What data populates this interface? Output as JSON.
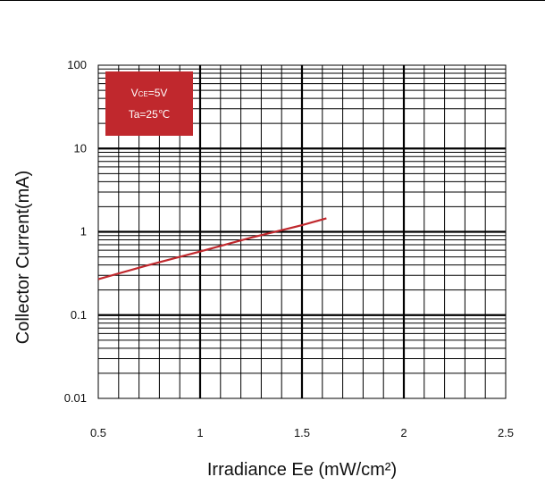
{
  "chart_data": {
    "type": "line",
    "title": "",
    "xlabel": "Irradiance Ee (mW/cm²)",
    "ylabel": "Collector Current(mA)",
    "xlim": [
      0.5,
      2.5
    ],
    "ylim": [
      0.01,
      100
    ],
    "xscale": "linear",
    "yscale": "log",
    "grid": true,
    "x_ticks": [
      "0.5",
      "1",
      "1.5",
      "2",
      "2.5"
    ],
    "y_ticks": [
      "100",
      "10",
      "1",
      "0.1",
      "0.01"
    ],
    "series": [
      {
        "x": [
          0.5,
          0.75,
          1.0,
          1.25,
          1.5,
          1.62
        ],
        "y": [
          0.27,
          0.4,
          0.58,
          0.85,
          1.2,
          1.45
        ],
        "color": "#c0282d"
      }
    ],
    "annotation": {
      "line1_main": "V",
      "line1_sub": "CE",
      "line1_rest": "=5V",
      "line2": "Ta=25℃",
      "color": "#c0282d",
      "placement": "top-left"
    }
  }
}
